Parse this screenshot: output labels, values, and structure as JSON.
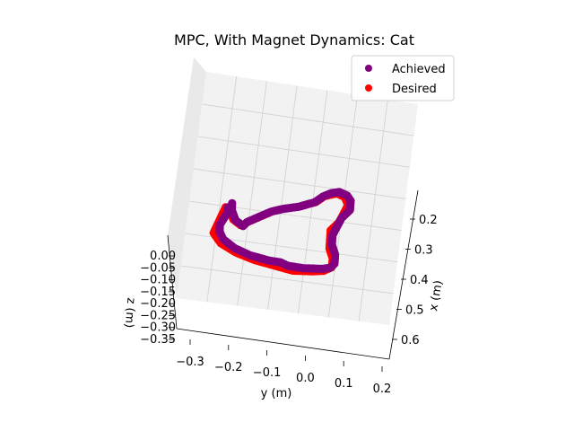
{
  "chart_data": {
    "type": "scatter",
    "projection": "3d",
    "title": "MPC, With Magnet Dynamics: Cat",
    "xlabel": "x (m)",
    "ylabel": "y (m)",
    "zlabel": "z (m)",
    "xticks": [
      "0.2",
      "0.3",
      "0.4",
      "0.5",
      "0.6"
    ],
    "yticks": [
      "−0.3",
      "−0.2",
      "−0.1",
      "0.0",
      "0.1",
      "0.2"
    ],
    "zticks": [
      "0.00",
      "−0.05",
      "−0.10",
      "−0.15",
      "−0.20",
      "−0.25",
      "−0.30",
      "−0.35"
    ],
    "grid": true,
    "legend_position": "top-right",
    "series": [
      {
        "name": "Achieved",
        "color": "#800080",
        "points": [
          [
            0.33,
            -0.18,
            -0.02
          ],
          [
            0.35,
            -0.18,
            -0.02
          ],
          [
            0.38,
            -0.19,
            -0.02
          ],
          [
            0.41,
            -0.2,
            -0.02
          ],
          [
            0.44,
            -0.2,
            -0.02
          ],
          [
            0.47,
            -0.19,
            -0.02
          ],
          [
            0.5,
            -0.16,
            -0.02
          ],
          [
            0.52,
            -0.12,
            -0.02
          ],
          [
            0.53,
            -0.07,
            -0.02
          ],
          [
            0.53,
            -0.04,
            -0.02
          ],
          [
            0.54,
            -0.02,
            -0.02
          ],
          [
            0.54,
            0.02,
            -0.02
          ],
          [
            0.53,
            0.07,
            -0.02
          ],
          [
            0.52,
            0.09,
            -0.02
          ],
          [
            0.5,
            0.1,
            -0.02
          ],
          [
            0.46,
            0.1,
            -0.02
          ],
          [
            0.42,
            0.09,
            -0.02
          ],
          [
            0.38,
            0.09,
            -0.02
          ],
          [
            0.34,
            0.1,
            -0.02
          ],
          [
            0.3,
            0.11,
            -0.02
          ],
          [
            0.26,
            0.13,
            -0.02
          ],
          [
            0.22,
            0.13,
            -0.02
          ],
          [
            0.2,
            0.12,
            -0.02
          ],
          [
            0.19,
            0.1,
            -0.02
          ],
          [
            0.2,
            0.08,
            -0.02
          ],
          [
            0.22,
            0.06,
            -0.02
          ],
          [
            0.25,
            0.04,
            -0.02
          ],
          [
            0.28,
            0.0,
            -0.02
          ],
          [
            0.3,
            -0.04,
            -0.02
          ],
          [
            0.32,
            -0.07,
            -0.02
          ],
          [
            0.34,
            -0.09,
            -0.02
          ],
          [
            0.36,
            -0.11,
            -0.02
          ],
          [
            0.38,
            -0.13,
            -0.02
          ],
          [
            0.4,
            -0.14,
            -0.02
          ],
          [
            0.38,
            -0.16,
            -0.02
          ],
          [
            0.34,
            -0.17,
            -0.02
          ],
          [
            0.31,
            -0.17,
            -0.02
          ]
        ]
      },
      {
        "name": "Desired",
        "color": "#ff0000",
        "points": [
          [
            0.32,
            -0.18,
            -0.02
          ],
          [
            0.36,
            -0.19,
            -0.02
          ],
          [
            0.4,
            -0.2,
            -0.02
          ],
          [
            0.44,
            -0.21,
            -0.02
          ],
          [
            0.48,
            -0.19,
            -0.02
          ],
          [
            0.51,
            -0.15,
            -0.02
          ],
          [
            0.53,
            -0.1,
            -0.02
          ],
          [
            0.54,
            -0.05,
            -0.02
          ],
          [
            0.55,
            0.0,
            -0.02
          ],
          [
            0.54,
            0.05,
            -0.02
          ],
          [
            0.53,
            0.08,
            -0.02
          ],
          [
            0.51,
            0.1,
            -0.02
          ],
          [
            0.47,
            0.1,
            -0.02
          ],
          [
            0.43,
            0.09,
            -0.02
          ],
          [
            0.39,
            0.09,
            -0.02
          ],
          [
            0.35,
            0.09,
            -0.02
          ],
          [
            0.31,
            0.11,
            -0.02
          ],
          [
            0.27,
            0.12,
            -0.02
          ],
          [
            0.23,
            0.13,
            -0.02
          ],
          [
            0.2,
            0.12,
            -0.02
          ],
          [
            0.19,
            0.1,
            -0.02
          ],
          [
            0.21,
            0.07,
            -0.02
          ],
          [
            0.24,
            0.05,
            -0.02
          ],
          [
            0.27,
            0.01,
            -0.02
          ],
          [
            0.29,
            -0.03,
            -0.02
          ],
          [
            0.31,
            -0.06,
            -0.02
          ],
          [
            0.33,
            -0.08,
            -0.02
          ],
          [
            0.35,
            -0.1,
            -0.02
          ],
          [
            0.37,
            -0.12,
            -0.02
          ],
          [
            0.39,
            -0.14,
            -0.02
          ],
          [
            0.37,
            -0.16,
            -0.02
          ],
          [
            0.33,
            -0.17,
            -0.02
          ]
        ]
      }
    ]
  }
}
